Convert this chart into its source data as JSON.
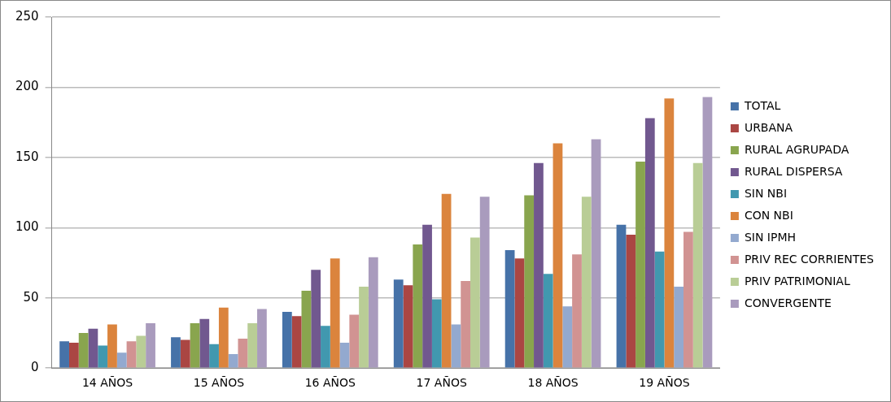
{
  "chart_data": {
    "type": "bar",
    "categories": [
      "14 AÑOS",
      "15 AÑOS",
      "16 AÑOS",
      "17 AÑOS",
      "18 AÑOS",
      "19 AÑOS"
    ],
    "series": [
      {
        "name": "TOTAL",
        "color": "#4672a8",
        "values": [
          19,
          22,
          40,
          63,
          84,
          102
        ]
      },
      {
        "name": "URBANA",
        "color": "#aa4643",
        "values": [
          18,
          20,
          37,
          59,
          78,
          95
        ]
      },
      {
        "name": "RURAL AGRUPADA",
        "color": "#89a54e",
        "values": [
          25,
          32,
          55,
          88,
          123,
          147
        ]
      },
      {
        "name": "RURAL DISPERSA",
        "color": "#71588f",
        "values": [
          28,
          35,
          70,
          102,
          146,
          178
        ]
      },
      {
        "name": "SIN NBI",
        "color": "#4198af",
        "values": [
          16,
          17,
          30,
          49,
          67,
          83
        ]
      },
      {
        "name": "CON NBI",
        "color": "#db843d",
        "values": [
          31,
          43,
          78,
          124,
          160,
          192
        ]
      },
      {
        "name": "SIN IPMH",
        "color": "#93a9cf",
        "values": [
          11,
          10,
          18,
          31,
          44,
          58
        ]
      },
      {
        "name": "PRIV REC CORRIENTES",
        "color": "#d19392",
        "values": [
          19,
          21,
          38,
          62,
          81,
          97
        ]
      },
      {
        "name": "PRIV PATRIMONIAL",
        "color": "#b9cd96",
        "values": [
          23,
          32,
          58,
          93,
          122,
          146
        ]
      },
      {
        "name": "CONVERGENTE",
        "color": "#a99bbd",
        "values": [
          32,
          42,
          79,
          122,
          163,
          193
        ]
      }
    ],
    "ylim": [
      0,
      250
    ],
    "yticks": [
      0,
      50,
      100,
      150,
      200,
      250
    ],
    "grid": "y",
    "legend": "right"
  }
}
